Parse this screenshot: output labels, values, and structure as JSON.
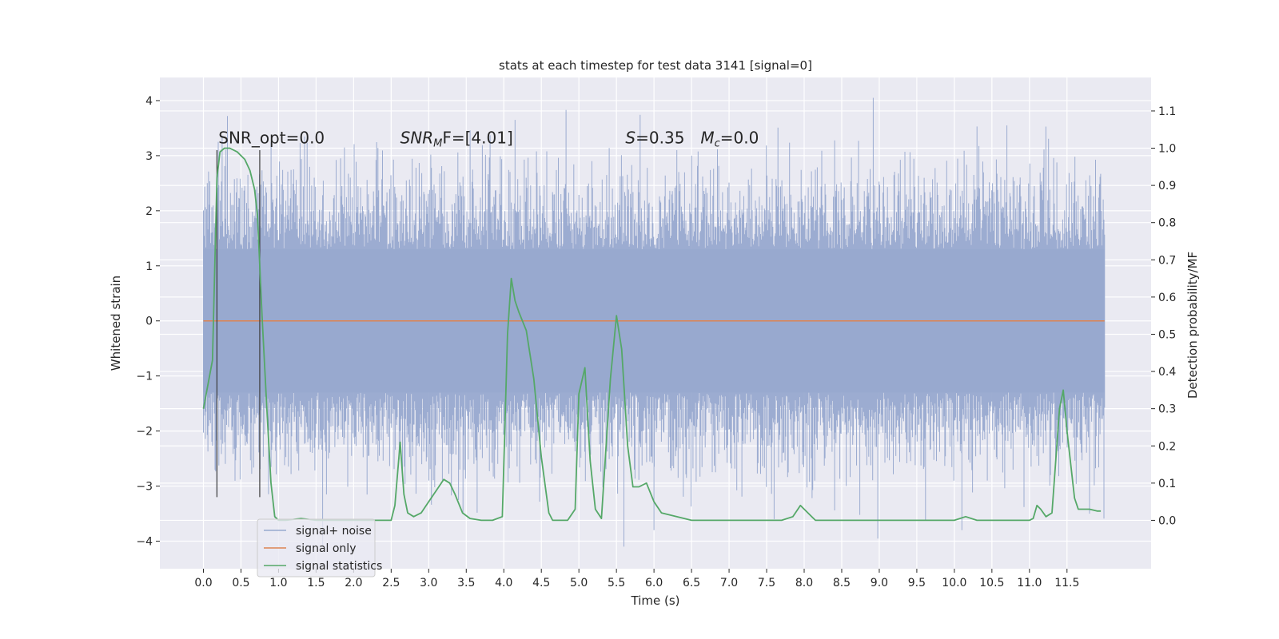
{
  "chart_data": {
    "type": "line",
    "title": "stats at each timestep for test data 3141 [signal=0]",
    "xlabel": "Time (s)",
    "ylabel_left": "Whitened strain",
    "ylabel_right": "Detection probability/MF",
    "xlim": [
      -0.58,
      12.62
    ],
    "ylim_left": [
      -4.5,
      4.42
    ],
    "ylim_right": [
      -0.13,
      1.19
    ],
    "x_ticks": [
      0.0,
      0.5,
      1.0,
      1.5,
      2.0,
      2.5,
      3.0,
      3.5,
      4.0,
      4.5,
      5.0,
      5.5,
      6.0,
      6.5,
      7.0,
      7.5,
      8.0,
      8.5,
      9.0,
      9.5,
      10.0,
      10.5,
      11.0,
      11.5
    ],
    "x_tick_labels": [
      "0.0",
      "0.5",
      "1.0",
      "1.5",
      "2.0",
      "2.5",
      "3.0",
      "3.5",
      "4.0",
      "4.5",
      "5.0",
      "5.5",
      "6.0",
      "6.5",
      "7.0",
      "7.5",
      "8.0",
      "8.5",
      "9.0",
      "9.5",
      "10.0",
      "10.5",
      "11.0",
      "11.5"
    ],
    "y_left_ticks": [
      4,
      3,
      2,
      1,
      0,
      -1,
      -2,
      -3,
      -4
    ],
    "y_left_tick_labels": [
      "4",
      "3",
      "2",
      "1",
      "0",
      "−1",
      "−2",
      "−3",
      "−4"
    ],
    "y_right_ticks": [
      1.1,
      1.0,
      0.9,
      0.8,
      0.7,
      0.6,
      0.5,
      0.4,
      0.3,
      0.2,
      0.1,
      0.0
    ],
    "y_right_tick_labels": [
      "1.1",
      "1.0",
      "0.9",
      "0.8",
      "0.7",
      "0.6",
      "0.5",
      "0.4",
      "0.3",
      "0.2",
      "0.1",
      "0.0"
    ],
    "grid": true,
    "legend_position": "lower-left",
    "series": [
      {
        "name": "signal+ noise",
        "axis": "left",
        "color": "#98a9cf",
        "x_range": [
          0.0,
          12.0
        ],
        "core_band": [
          -1.3,
          1.3
        ],
        "envelope_typical": [
          -2.6,
          2.6
        ],
        "envelope_extreme": [
          -4.1,
          4.05
        ],
        "note_values": "dense noise trace, envelope estimated"
      },
      {
        "name": "signal only",
        "axis": "left",
        "color": "#dd8452",
        "x": [
          0.0,
          12.0
        ],
        "y": [
          0.0,
          0.0
        ]
      },
      {
        "name": "signal statistics",
        "axis": "right",
        "color": "#55a868",
        "x": [
          0.0,
          0.12,
          0.18,
          0.22,
          0.28,
          0.35,
          0.45,
          0.55,
          0.62,
          0.68,
          0.72,
          0.78,
          0.85,
          0.9,
          0.95,
          1.0,
          1.1,
          1.3,
          1.5,
          2.0,
          2.5,
          2.55,
          2.62,
          2.67,
          2.72,
          2.8,
          2.9,
          3.0,
          3.1,
          3.2,
          3.28,
          3.35,
          3.45,
          3.55,
          3.7,
          3.85,
          3.98,
          4.05,
          4.1,
          4.15,
          4.2,
          4.3,
          4.4,
          4.5,
          4.6,
          4.65,
          4.7,
          4.85,
          4.95,
          5.0,
          5.08,
          5.15,
          5.22,
          5.3,
          5.42,
          5.5,
          5.57,
          5.65,
          5.72,
          5.8,
          5.9,
          6.0,
          6.1,
          6.3,
          6.5,
          7.0,
          7.5,
          7.7,
          7.85,
          7.95,
          8.05,
          8.15,
          8.5,
          9.0,
          10.0,
          10.15,
          10.3,
          10.6,
          11.0,
          11.05,
          11.1,
          11.15,
          11.22,
          11.3,
          11.4,
          11.45,
          11.5,
          11.6,
          11.65,
          11.7,
          11.8,
          11.9,
          11.95
        ],
        "y": [
          0.3,
          0.43,
          0.92,
          0.99,
          1.0,
          1.0,
          0.99,
          0.97,
          0.94,
          0.89,
          0.82,
          0.55,
          0.28,
          0.1,
          0.01,
          0.0,
          0.0,
          0.005,
          0.0,
          0.0,
          0.0,
          0.04,
          0.21,
          0.07,
          0.02,
          0.01,
          0.02,
          0.05,
          0.08,
          0.11,
          0.1,
          0.07,
          0.02,
          0.005,
          0.0,
          0.0,
          0.01,
          0.5,
          0.65,
          0.59,
          0.56,
          0.51,
          0.38,
          0.17,
          0.02,
          0.0,
          0.0,
          0.0,
          0.03,
          0.34,
          0.41,
          0.16,
          0.03,
          0.005,
          0.38,
          0.55,
          0.46,
          0.2,
          0.09,
          0.09,
          0.1,
          0.05,
          0.02,
          0.01,
          0.0,
          0.0,
          0.0,
          0.0,
          0.01,
          0.04,
          0.02,
          0.0,
          0.0,
          0.0,
          0.0,
          0.01,
          0.0,
          0.0,
          0.0,
          0.005,
          0.04,
          0.03,
          0.01,
          0.02,
          0.3,
          0.35,
          0.24,
          0.06,
          0.03,
          0.03,
          0.03,
          0.025,
          0.025
        ]
      }
    ],
    "vertical_markers": {
      "color": "#3b3b3b",
      "x": [
        0.18,
        0.75
      ],
      "y_from": -3.2,
      "y_to": 3.1
    },
    "annotations": {
      "snr_opt": {
        "text": "SNR_opt=0.0",
        "x": 0.2,
        "y": 3.22
      },
      "snr_mf": {
        "prefix": "SNR",
        "subscript": "M",
        "suffix": "F=[4.01]",
        "x": 2.62,
        "y": 3.22
      },
      "s_stat": {
        "symbol": "S",
        "value": "=0.35",
        "x": 5.62,
        "y": 3.22
      },
      "mc_stat": {
        "symbol": "M",
        "subscript": "c",
        "value": "=0.0",
        "x": 6.62,
        "y": 3.22
      }
    },
    "legend": [
      {
        "label": "signal+ noise",
        "color": "#98a9cf"
      },
      {
        "label": "signal only",
        "color": "#dd8452"
      },
      {
        "label": "signal statistics",
        "color": "#55a868"
      }
    ]
  }
}
